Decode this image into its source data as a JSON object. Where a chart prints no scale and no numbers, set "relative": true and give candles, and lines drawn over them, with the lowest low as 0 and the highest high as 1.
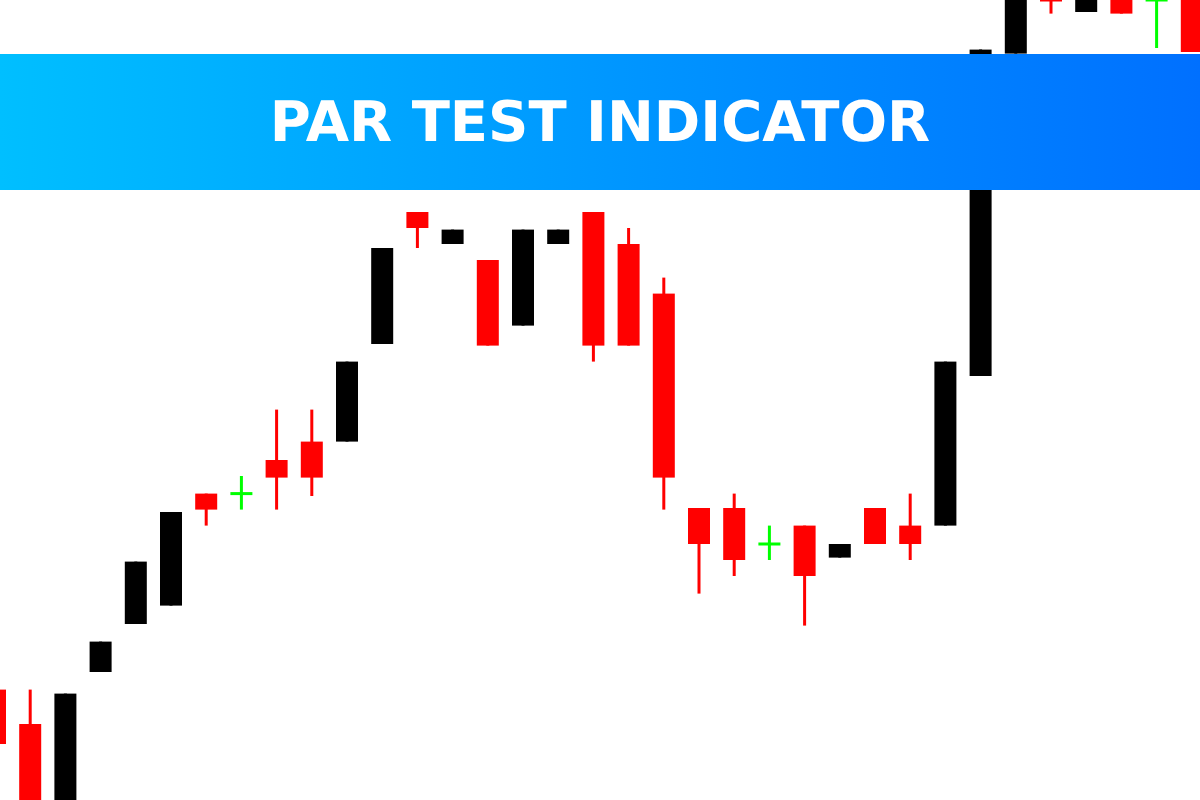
{
  "chart_data": {
    "type": "candlestick",
    "title": "PAR TEST INDICATOR",
    "relative": true,
    "categories": [
      null,
      null,
      null,
      null,
      null,
      null,
      null,
      null,
      null,
      null,
      null,
      null,
      null,
      null,
      null,
      null,
      null,
      null,
      null,
      null,
      null,
      null,
      null,
      null,
      null,
      null,
      null,
      null,
      null,
      null,
      null,
      null,
      null,
      null,
      null
    ],
    "ohlc": [
      [
        0.138,
        0.138,
        0.07,
        0.07
      ],
      [
        0.095,
        0.138,
        0,
        0
      ],
      [
        0,
        0.133,
        0,
        0.133
      ],
      [
        0.16,
        0.198,
        0.16,
        0.198
      ],
      [
        0.22,
        0.298,
        0.22,
        0.298
      ],
      [
        0.243,
        0.36,
        0.243,
        0.36
      ],
      [
        0.383,
        0.383,
        0.343,
        0.363
      ],
      [
        0.383,
        0.405,
        0.363,
        0.383
      ],
      [
        0.425,
        0.488,
        0.363,
        0.403
      ],
      [
        0.448,
        0.488,
        0.38,
        0.403
      ],
      [
        0.448,
        0.548,
        0.448,
        0.548
      ],
      [
        0.57,
        0.69,
        0.57,
        0.69
      ],
      [
        0.735,
        0.735,
        0.69,
        0.715
      ],
      [
        0.695,
        0.713,
        0.695,
        0.713
      ],
      [
        0.675,
        0.675,
        0.568,
        0.568
      ],
      [
        0.593,
        0.713,
        0.593,
        0.713
      ],
      [
        0.695,
        0.713,
        0.695,
        0.713
      ],
      [
        0.735,
        0.735,
        0.548,
        0.568
      ],
      [
        0.695,
        0.715,
        0.568,
        0.568
      ],
      [
        0.633,
        0.653,
        0.363,
        0.403
      ],
      [
        0.365,
        0.365,
        0.258,
        0.32
      ],
      [
        0.365,
        0.383,
        0.28,
        0.3
      ],
      [
        0.32,
        0.343,
        0.3,
        0.32
      ],
      [
        0.343,
        0.343,
        0.218,
        0.28
      ],
      [
        0.303,
        0.32,
        0.303,
        0.32
      ],
      [
        0.365,
        0.365,
        0.32,
        0.32
      ],
      [
        0.343,
        0.383,
        0.3,
        0.32
      ],
      [
        0.343,
        0.548,
        0.343,
        0.548
      ],
      [
        0.53,
        0.938,
        0.53,
        0.938
      ],
      [
        0.933,
        1,
        0.933,
        1
      ],
      [
        1,
        1,
        0.983,
        1
      ],
      [
        0.985,
        1,
        0.985,
        1
      ],
      [
        1,
        1,
        0.983,
        0.983
      ],
      [
        1,
        1,
        0.94,
        1
      ],
      [
        1,
        1,
        0.935,
        0.935
      ]
    ],
    "colors": [
      "#ff0000",
      "#ff0000",
      "#000000",
      "#000000",
      "#000000",
      "#000000",
      "#ff0000",
      "#00ff00",
      "#ff0000",
      "#ff0000",
      "#000000",
      "#000000",
      "#ff0000",
      "#000000",
      "#ff0000",
      "#000000",
      "#000000",
      "#ff0000",
      "#ff0000",
      "#ff0000",
      "#ff0000",
      "#ff0000",
      "#00ff00",
      "#ff0000",
      "#000000",
      "#ff0000",
      "#ff0000",
      "#000000",
      "#000000",
      "#000000",
      "#ff0000",
      "#000000",
      "#ff0000",
      "#00ff00",
      "#ff0000"
    ]
  }
}
